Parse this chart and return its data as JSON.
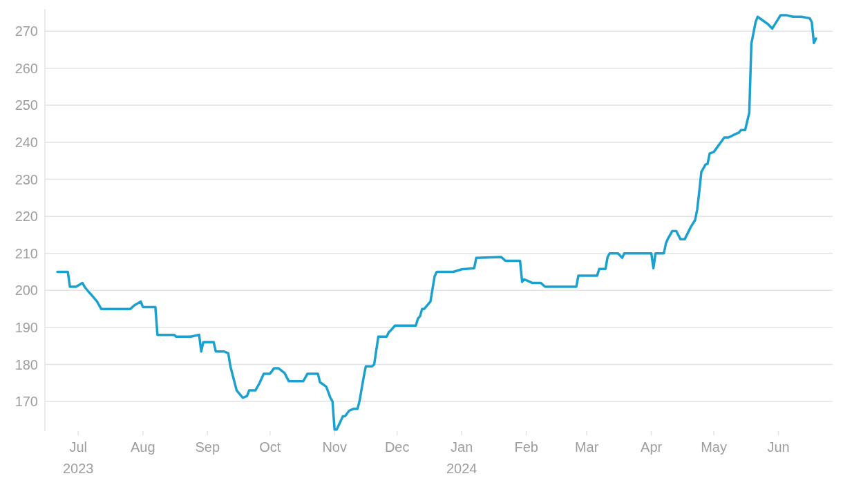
{
  "chart_data": {
    "type": "line",
    "grid": "y",
    "marker": "none",
    "line_style": "solid",
    "xlim": [
      "2023-06-15",
      "2024-06-27"
    ],
    "ylim": [
      162,
      276
    ],
    "yticks": [
      170,
      180,
      190,
      200,
      210,
      220,
      230,
      240,
      250,
      260,
      270
    ],
    "xticks": [
      {
        "value": "2023-07-01",
        "label": "Jul\n2023"
      },
      {
        "value": "2023-08-01",
        "label": "Aug"
      },
      {
        "value": "2023-09-01",
        "label": "Sep"
      },
      {
        "value": "2023-10-01",
        "label": "Oct"
      },
      {
        "value": "2023-11-01",
        "label": "Nov"
      },
      {
        "value": "2023-12-01",
        "label": "Dec"
      },
      {
        "value": "2024-01-01",
        "label": "Jan\n2024"
      },
      {
        "value": "2024-02-01",
        "label": "Feb"
      },
      {
        "value": "2024-03-01",
        "label": "Mar"
      },
      {
        "value": "2024-04-01",
        "label": "Apr"
      },
      {
        "value": "2024-05-01",
        "label": "May"
      },
      {
        "value": "2024-06-01",
        "label": "Jun"
      }
    ],
    "series": [
      {
        "color": "#1ba1d0",
        "x": [
          "2023-06-21",
          "2023-06-26",
          "2023-06-27",
          "2023-06-30",
          "2023-07-03",
          "2023-07-04",
          "2023-07-06",
          "2023-07-07",
          "2023-07-10",
          "2023-07-12",
          "2023-07-26",
          "2023-07-28",
          "2023-07-31",
          "2023-08-01",
          "2023-08-07",
          "2023-08-08",
          "2023-08-16",
          "2023-08-17",
          "2023-08-24",
          "2023-08-28",
          "2023-08-29",
          "2023-08-30",
          "2023-09-04",
          "2023-09-05",
          "2023-09-09",
          "2023-09-11",
          "2023-09-12",
          "2023-09-15",
          "2023-09-18",
          "2023-09-20",
          "2023-09-21",
          "2023-09-24",
          "2023-09-26",
          "2023-09-28",
          "2023-10-01",
          "2023-10-03",
          "2023-10-05",
          "2023-10-08",
          "2023-10-10",
          "2023-10-17",
          "2023-10-19",
          "2023-10-24",
          "2023-10-25",
          "2023-10-28",
          "2023-10-30",
          "2023-10-31",
          "2023-11-01",
          "2023-11-02",
          "2023-11-05",
          "2023-11-06",
          "2023-11-08",
          "2023-11-10",
          "2023-11-12",
          "2023-11-13",
          "2023-11-15",
          "2023-11-16",
          "2023-11-19",
          "2023-11-20",
          "2023-11-22",
          "2023-11-26",
          "2023-11-27",
          "2023-11-28",
          "2023-11-30",
          "2023-12-10",
          "2023-12-11",
          "2023-12-12",
          "2023-12-13",
          "2023-12-14",
          "2023-12-17",
          "2023-12-19",
          "2023-12-20",
          "2023-12-28",
          "2024-01-01",
          "2024-01-07",
          "2024-01-08",
          "2024-01-20",
          "2024-01-22",
          "2024-01-29",
          "2024-01-30",
          "2024-01-31",
          "2024-02-04",
          "2024-02-08",
          "2024-02-10",
          "2024-02-25",
          "2024-02-26",
          "2024-03-06",
          "2024-03-07",
          "2024-03-10",
          "2024-03-11",
          "2024-03-12",
          "2024-03-16",
          "2024-03-18",
          "2024-03-19",
          "2024-04-01",
          "2024-04-02",
          "2024-04-03",
          "2024-04-07",
          "2024-04-08",
          "2024-04-09",
          "2024-04-11",
          "2024-04-13",
          "2024-04-15",
          "2024-04-17",
          "2024-04-20",
          "2024-04-22",
          "2024-04-23",
          "2024-04-24",
          "2024-04-25",
          "2024-04-27",
          "2024-04-28",
          "2024-04-29",
          "2024-05-01",
          "2024-05-06",
          "2024-05-08",
          "2024-05-12",
          "2024-05-13",
          "2024-05-14",
          "2024-05-16",
          "2024-05-18",
          "2024-05-19",
          "2024-05-21",
          "2024-05-22",
          "2024-05-27",
          "2024-05-29",
          "2024-06-02",
          "2024-06-05",
          "2024-06-08",
          "2024-06-12",
          "2024-06-16",
          "2024-06-17",
          "2024-06-18",
          "2024-06-19"
        ],
        "values": [
          205,
          205,
          201,
          201,
          202,
          201,
          199.6,
          199,
          197,
          195,
          195,
          196,
          197,
          195.5,
          195.5,
          188,
          188,
          187.5,
          187.5,
          188,
          183.5,
          186,
          186,
          183.5,
          183.5,
          183,
          179.5,
          173,
          171,
          171.5,
          173,
          173,
          175,
          177.5,
          177.5,
          179,
          179,
          177.7,
          175.5,
          175.5,
          177.5,
          177.5,
          175.2,
          174,
          171,
          170,
          162.4,
          162.4,
          166,
          166,
          167.5,
          168,
          168,
          170.2,
          176.7,
          179.5,
          179.5,
          180,
          187.5,
          187.5,
          188.7,
          189.2,
          190.5,
          190.5,
          192.4,
          193,
          195,
          195,
          197,
          203.8,
          205,
          205,
          205.7,
          206,
          208.8,
          209,
          208,
          208,
          202.3,
          203,
          202,
          202,
          201,
          201,
          204,
          204,
          205.8,
          205.8,
          209,
          210,
          210,
          208.8,
          210,
          210,
          206,
          210,
          210,
          212.7,
          214,
          216,
          216,
          213.8,
          213.8,
          217.2,
          219,
          221.8,
          226.7,
          232,
          234,
          234.2,
          237,
          237.4,
          241.3,
          241.3,
          242.4,
          242.6,
          243.3,
          243.3,
          248,
          266.6,
          272.4,
          273.9,
          271.9,
          270.7,
          274.3,
          274.3,
          273.9,
          273.9,
          273.5,
          272.4,
          266.8,
          268
        ]
      }
    ]
  }
}
